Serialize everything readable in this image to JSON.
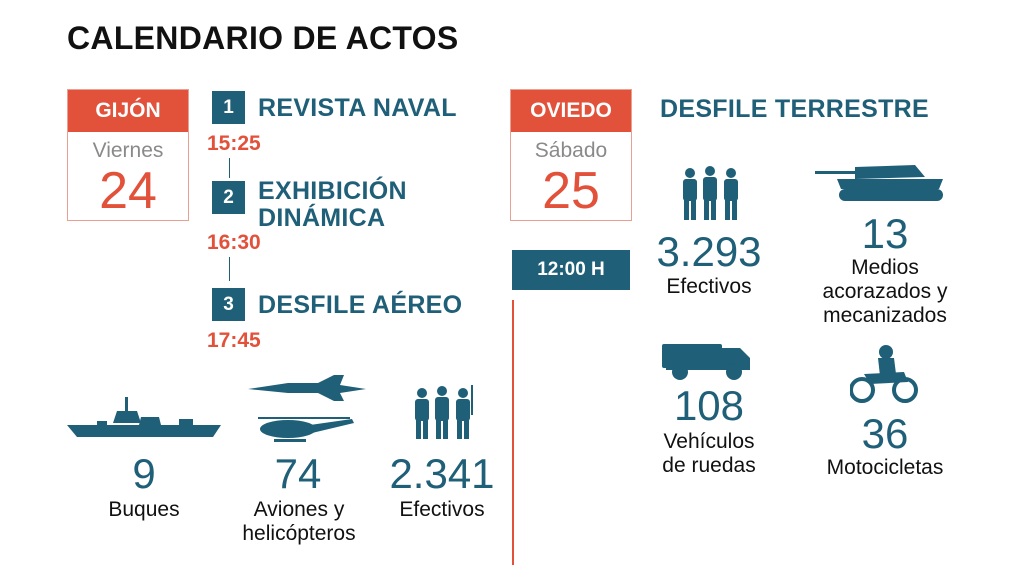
{
  "title": "CALENDARIO DE ACTOS",
  "gijon": {
    "city": "GIJÓN",
    "weekday": "Viernes",
    "day": "24"
  },
  "schedule": [
    {
      "n": "1",
      "name": "REVISTA NAVAL",
      "time": "15:25"
    },
    {
      "n": "2",
      "name_line1": "EXHIBICIÓN",
      "name_line2": "DINÁMICA",
      "time": "16:30"
    },
    {
      "n": "3",
      "name": "DESFILE AÉREO",
      "time": "17:45"
    }
  ],
  "gijon_stats": [
    {
      "value": "9",
      "label": "Buques"
    },
    {
      "value": "74",
      "label_line1": "Aviones y",
      "label_line2": "helicópteros"
    },
    {
      "value": "2.341",
      "label": "Efectivos"
    }
  ],
  "oviedo": {
    "city": "OVIEDO",
    "weekday": "Sábado",
    "day": "25",
    "time": "12:00 H",
    "section": "DESFILE TERRESTRE"
  },
  "oviedo_stats": [
    {
      "value": "3.293",
      "label": "Efectivos"
    },
    {
      "value": "13",
      "label_line1": "Medios",
      "label_line2": "acorazados y",
      "label_line3": "mecanizados"
    },
    {
      "value": "108",
      "label_line1": "Vehículos",
      "label_line2": "de ruedas"
    },
    {
      "value": "36",
      "label": "Motocicletas"
    }
  ],
  "colors": {
    "accent": "#e2513a",
    "primary": "#1f5f78"
  }
}
